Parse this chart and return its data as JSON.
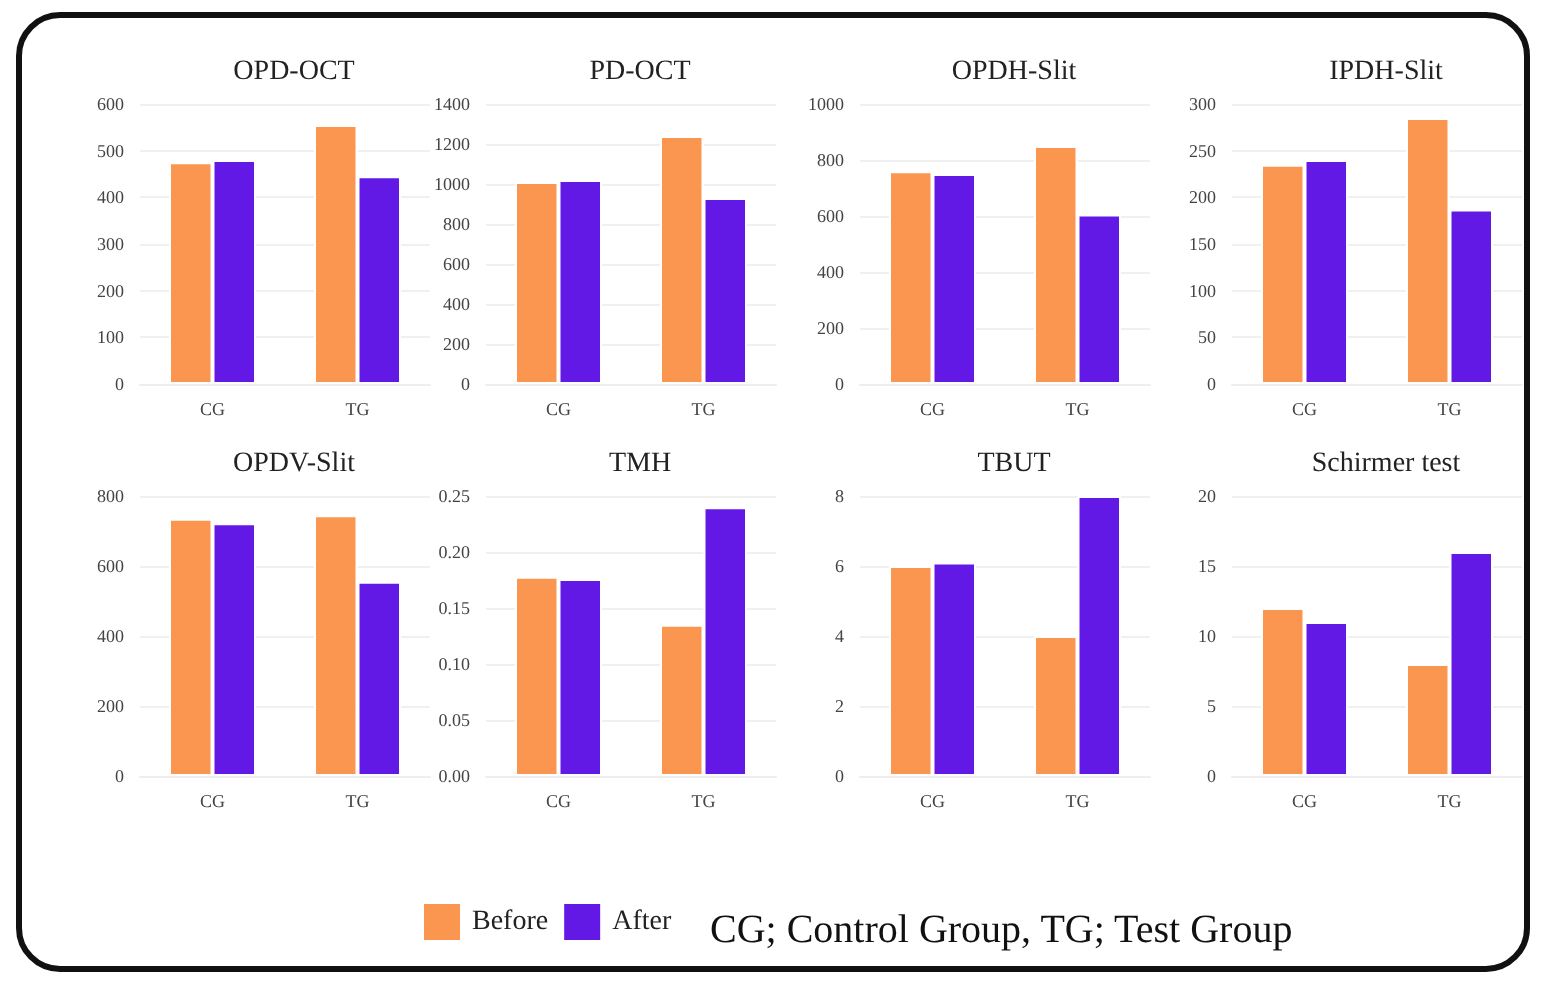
{
  "chart_data": [
    {
      "type": "bar",
      "title": "OPD-OCT",
      "categories": [
        "CG",
        "TG"
      ],
      "ylim": [
        0,
        600
      ],
      "yticks": [
        0,
        100,
        200,
        300,
        400,
        500,
        600
      ],
      "grid": "y",
      "series": [
        {
          "color": "#fb9650",
          "values": [
            475,
            555
          ]
        },
        {
          "color": "#6319e6",
          "values": [
            480,
            445
          ]
        }
      ]
    },
    {
      "type": "bar",
      "title": "PD-OCT",
      "categories": [
        "CG",
        "TG"
      ],
      "ylim": [
        0,
        1400
      ],
      "yticks": [
        0,
        200,
        400,
        600,
        800,
        1000,
        1200,
        1400
      ],
      "grid": "y",
      "series": [
        {
          "color": "#fb9650",
          "values": [
            1010,
            1240
          ]
        },
        {
          "color": "#6319e6",
          "values": [
            1020,
            930
          ]
        }
      ]
    },
    {
      "type": "bar",
      "title": "OPDH-Slit",
      "categories": [
        "CG",
        "TG"
      ],
      "ylim": [
        0,
        1000
      ],
      "yticks": [
        0,
        200,
        400,
        600,
        800,
        1000
      ],
      "grid": "y",
      "series": [
        {
          "color": "#fb9650",
          "values": [
            760,
            850
          ]
        },
        {
          "color": "#6319e6",
          "values": [
            750,
            605
          ]
        }
      ]
    },
    {
      "type": "bar",
      "title": "IPDH-Slit",
      "categories": [
        "CG",
        "TG"
      ],
      "ylim": [
        0,
        300
      ],
      "yticks": [
        0,
        50,
        100,
        150,
        200,
        250,
        300
      ],
      "grid": "y",
      "series": [
        {
          "color": "#fb9650",
          "values": [
            235,
            285
          ]
        },
        {
          "color": "#6319e6",
          "values": [
            240,
            187
          ]
        }
      ]
    },
    {
      "type": "bar",
      "title": "OPDV-Slit",
      "categories": [
        "CG",
        "TG"
      ],
      "ylim": [
        0,
        800
      ],
      "yticks": [
        0,
        200,
        400,
        600,
        800
      ],
      "grid": "y",
      "series": [
        {
          "color": "#fb9650",
          "values": [
            735,
            745
          ]
        },
        {
          "color": "#6319e6",
          "values": [
            722,
            555
          ]
        }
      ]
    },
    {
      "type": "bar",
      "title": "TMH",
      "categories": [
        "CG",
        "TG"
      ],
      "ylim": [
        0,
        0.25
      ],
      "yticks": [
        {
          "value": 0,
          "label": "0.00"
        },
        {
          "value": 0.05,
          "label": "0.05"
        },
        {
          "value": 0.1,
          "label": "0.10"
        },
        {
          "value": 0.15,
          "label": "0.15"
        },
        {
          "value": 0.2,
          "label": "0.20"
        },
        {
          "value": 0.25,
          "label": "0.25"
        }
      ],
      "grid": "y",
      "legend": "bottom",
      "annotations": [
        "CG; Control Group, TG; Test Group"
      ],
      "series": [
        {
          "name": "Before",
          "color": "#fb9650",
          "values": [
            0.178,
            0.135
          ]
        },
        {
          "name": "After",
          "color": "#6319e6",
          "values": [
            0.176,
            0.24
          ]
        }
      ]
    },
    {
      "type": "bar",
      "title": "TBUT",
      "categories": [
        "CG",
        "TG"
      ],
      "ylim": [
        0,
        8
      ],
      "yticks": [
        0,
        2,
        4,
        6,
        8
      ],
      "grid": "y",
      "series": [
        {
          "color": "#fb9650",
          "values": [
            6,
            4
          ]
        },
        {
          "color": "#6319e6",
          "values": [
            6.1,
            8
          ]
        }
      ]
    },
    {
      "type": "bar",
      "title": "Schirmer test",
      "categories": [
        "CG",
        "TG"
      ],
      "ylim": [
        0,
        20
      ],
      "yticks": [
        0,
        5,
        10,
        15,
        20
      ],
      "grid": "y",
      "series": [
        {
          "color": "#fb9650",
          "values": [
            12,
            8
          ]
        },
        {
          "color": "#6319e6",
          "values": [
            11,
            16
          ]
        }
      ]
    }
  ]
}
